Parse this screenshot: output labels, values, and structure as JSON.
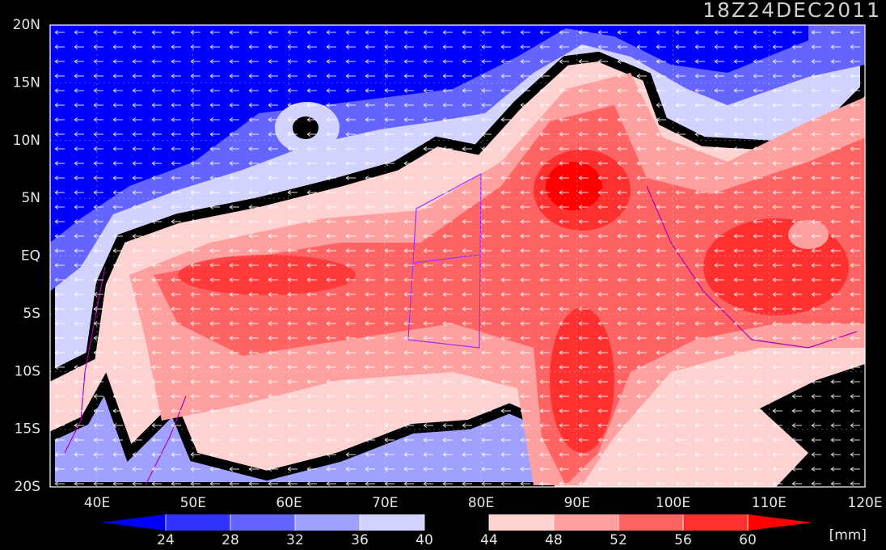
{
  "header": {
    "timestamp": "18Z24DEC2011"
  },
  "map": {
    "lat_labels": [
      "20N",
      "15N",
      "10N",
      "5N",
      "EQ",
      "5S",
      "10S",
      "15S",
      "20S"
    ],
    "lon_labels": [
      "40E",
      "50E",
      "60E",
      "70E",
      "80E",
      "90E",
      "100E",
      "110E",
      "120E"
    ]
  },
  "colorbar": {
    "levels": [
      24,
      28,
      32,
      36,
      40,
      44,
      48,
      52,
      56,
      60
    ],
    "colors": [
      "#0000ff",
      "#3232ff",
      "#6464ff",
      "#a0a0ff",
      "#d2d2ff",
      "#000000",
      "#ffd2d2",
      "#ffa0a0",
      "#ff6464",
      "#ff3030",
      "#ff0000"
    ],
    "unit": "[mm]"
  }
}
